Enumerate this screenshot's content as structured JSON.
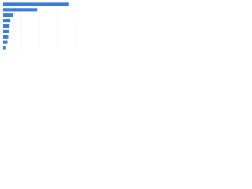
{
  "chart_data": {
    "type": "bar",
    "orientation": "horizontal",
    "categories": [
      null,
      null,
      null,
      null,
      null,
      null,
      null,
      null,
      null
    ],
    "values": [
      90,
      47,
      14,
      10,
      9,
      8,
      7,
      6,
      3
    ],
    "color": "#3b7ddd",
    "xlim": [
      0,
      100
    ]
  }
}
